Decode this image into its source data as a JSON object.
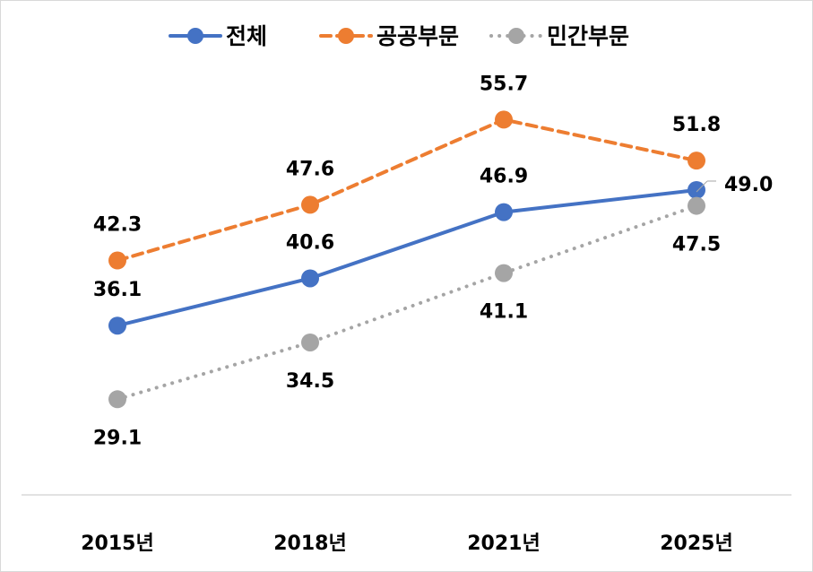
{
  "chart_data": {
    "type": "line",
    "title": "",
    "xlabel": "",
    "ylabel": "",
    "categories": [
      "2015년",
      "2018년",
      "2021년",
      "2025년"
    ],
    "ylim": [
      20,
      60
    ],
    "grid": false,
    "legend_position": "top",
    "series": [
      {
        "name": "전체",
        "values": [
          36.1,
          40.6,
          46.9,
          49.0
        ],
        "color": "#4472C4",
        "line_style": "solid",
        "label_positions": [
          "above",
          "above",
          "above",
          "right"
        ]
      },
      {
        "name": "공공부문",
        "values": [
          42.3,
          47.6,
          55.7,
          51.8
        ],
        "color": "#ED7D31",
        "line_style": "dashed",
        "label_positions": [
          "above",
          "above",
          "above",
          "above"
        ]
      },
      {
        "name": "민간부문",
        "values": [
          29.1,
          34.5,
          41.1,
          47.5
        ],
        "color": "#A5A5A5",
        "line_style": "dotted",
        "label_positions": [
          "below",
          "below",
          "below",
          "below"
        ]
      }
    ]
  }
}
